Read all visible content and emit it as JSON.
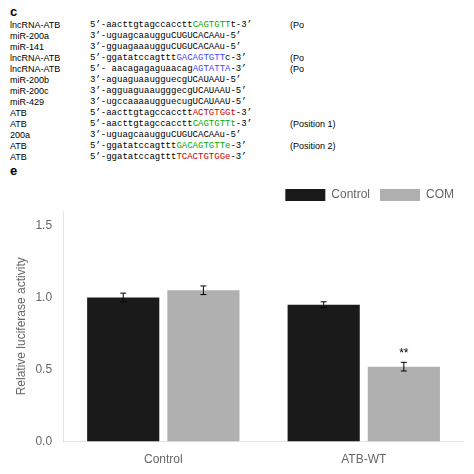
{
  "chart_data": {
    "type": "bar",
    "y_label": "Relative luciferase activity",
    "categories": [
      "Control",
      "ATB-WT"
    ],
    "series": [
      {
        "name": "Control",
        "color": "#1a1a1a",
        "values": [
          1.0,
          0.95
        ],
        "errors": [
          0.03,
          0.02
        ]
      },
      {
        "name": "COM",
        "color": "#b0b0b0",
        "values": [
          1.05,
          0.52
        ],
        "errors": [
          0.03,
          0.03
        ]
      }
    ],
    "ylim": [
      0.0,
      1.6
    ],
    "yticks": [
      {
        "value": 0.0,
        "label": "0.0"
      },
      0.5,
      {
        "value": 1.0,
        "label": "1.0"
      },
      1.5
    ],
    "grid": false,
    "legend": "upper right",
    "annotations": [
      {
        "text": "c"
      },
      {
        "label": "lncRNA-ATB",
        "text": "5’-aacttgtagccaccttCAGTGTTt-3’",
        "highlight": "CAGTGTT",
        "color": "#00aa00",
        "note": "(Po"
      },
      {
        "label": "miR-200a",
        "text": "3’-uguagcaaugguCUGUCACAAu-5’"
      },
      {
        "label": "miR-141",
        "text": "3’-gguagaaaugguCUGUCACAAu-5’"
      },
      {
        "label": "lncRNA-ATB",
        "text": "5’-ggatatccagtttGACAGTGTTc-3’",
        "highlight": "GACAGTGTT",
        "color": "#4444ff",
        "note": "(Po"
      },
      {
        "label": "lncRNA-ATB",
        "text": "5’- aacagagaguaacagAGTATTA-3’",
        "highlight": "AGTATTA",
        "color": "#4444ff",
        "note": "(Po"
      },
      {
        "label": "miR-200b",
        "text": "3’-aguaguaaugguecgUCAUAAU-5’"
      },
      {
        "label": "miR-200c",
        "text": "3’-agguaguaaugggecgUCAUAAU-5’"
      },
      {
        "label": "miR-429",
        "text": "3’-ugccaaaaugguecugUCAUAAU-5’"
      },
      {
        "label": "ATB",
        "text": "5’-aacttgtagccaccttACTGTGGt-3’",
        "highlight": "ACTGTGGt",
        "color": "#cc0000"
      },
      {
        "label": "ATB",
        "text": "5’-aacttgtagccaccttCAGTGTTt-3’",
        "highlight": "CAGTGTTt",
        "color": "#00aa00",
        "note": "(Position 1)"
      },
      {
        "label": "200a",
        "text": "3’-uguagcaaugguCUGUCACAAu-5’"
      },
      {
        "label": "ATB",
        "text": "5’-ggatatccagtttGACAGTGTTe-3’",
        "highlight": "GACAGTGTTe",
        "color": "#00aa00",
        "note": "(Position 2)"
      },
      {
        "label": "ATB",
        "text": "5’-ggatatccagtttTCACTGTGGe-3’",
        "highlight": "TCACTGTGGe",
        "color": "#cc0000"
      },
      {
        "text": "e"
      },
      {
        "text": "**",
        "category": "ATB-WT",
        "series": "COM"
      }
    ]
  }
}
